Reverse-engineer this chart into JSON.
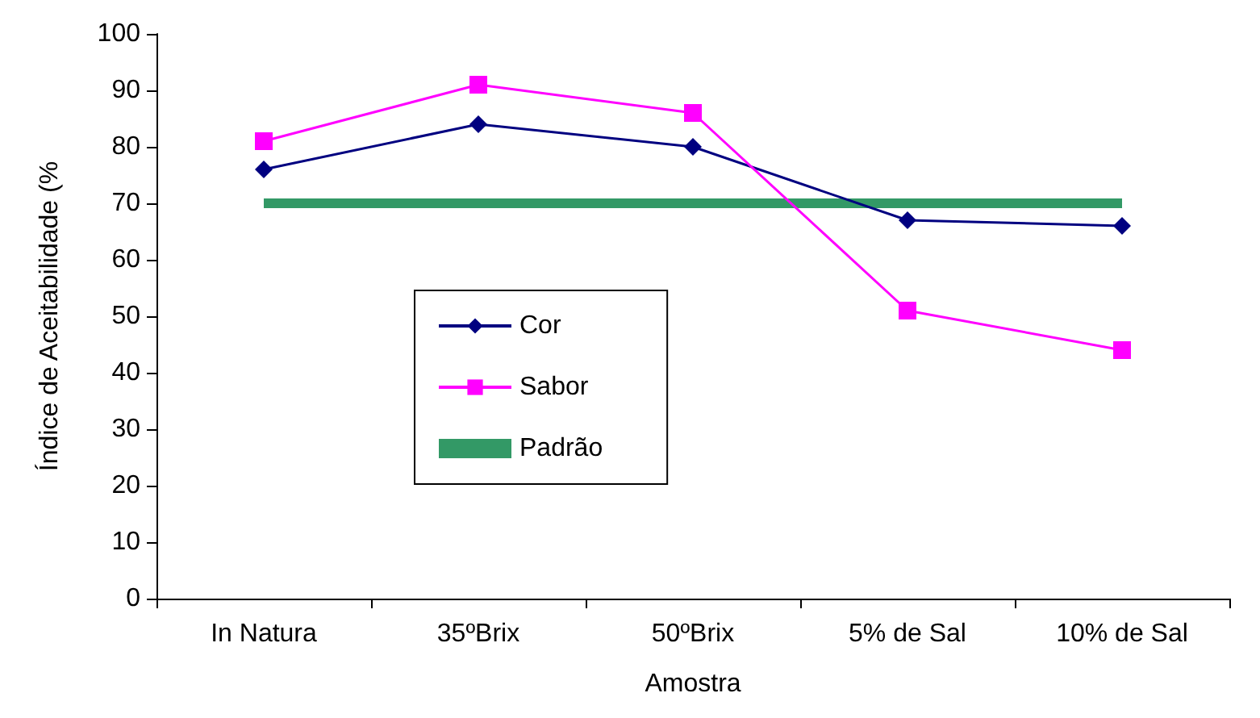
{
  "chart_data": {
    "type": "line",
    "xlabel": "Amostra",
    "ylabel": "Índice de Aceitabilidade (%",
    "categories": [
      "In Natura",
      "35ºBrix",
      "50ºBrix",
      "5% de Sal",
      "10% de Sal"
    ],
    "series": [
      {
        "name": "Cor",
        "color": "#000080",
        "marker": "diamond",
        "values": [
          76,
          84,
          80,
          67,
          66
        ]
      },
      {
        "name": "Sabor",
        "color": "#ff00ff",
        "marker": "square",
        "values": [
          81,
          91,
          86,
          51,
          44
        ]
      },
      {
        "name": "Padrão",
        "color": "#339966",
        "marker": "none",
        "values": [
          70,
          70,
          70,
          70,
          70
        ]
      }
    ],
    "ylim": [
      0,
      100
    ],
    "yticks": [
      0,
      10,
      20,
      30,
      40,
      50,
      60,
      70,
      80,
      90,
      100
    ],
    "grid": false,
    "legend": "center"
  }
}
